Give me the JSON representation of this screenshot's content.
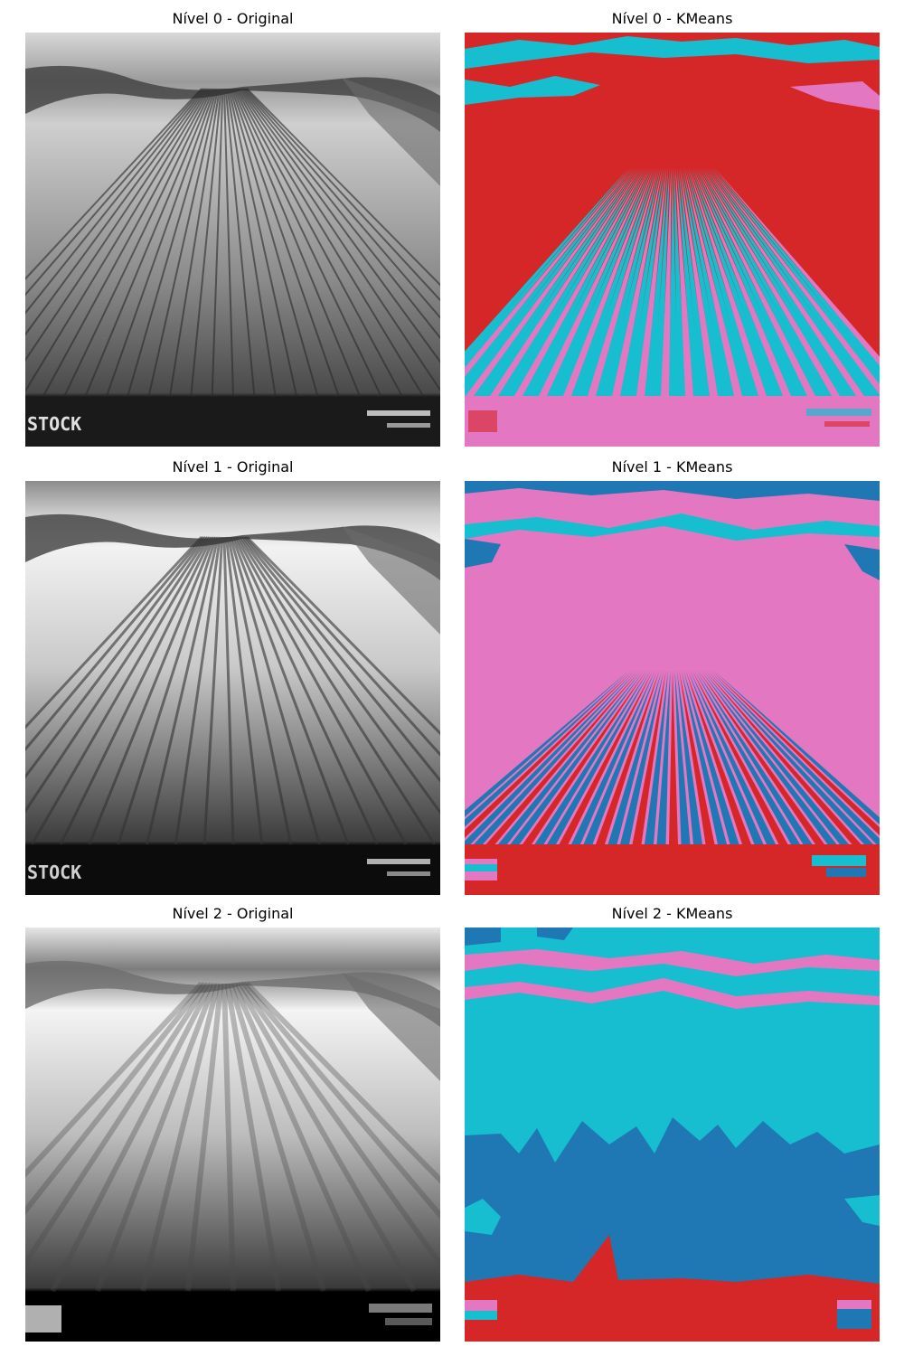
{
  "panels": [
    {
      "title": "Nível 0 - Original"
    },
    {
      "title": "Nível 0 - KMeans"
    },
    {
      "title": "Nível 1 - Original"
    },
    {
      "title": "Nível 1 - KMeans"
    },
    {
      "title": "Nível 2 - Original"
    },
    {
      "title": "Nível 2 - KMeans"
    }
  ],
  "watermark": "STOCK",
  "cluster_colors": {
    "red": "#d62728",
    "cyan": "#17becf",
    "pink": "#e377c2",
    "blue": "#1f77b4"
  }
}
